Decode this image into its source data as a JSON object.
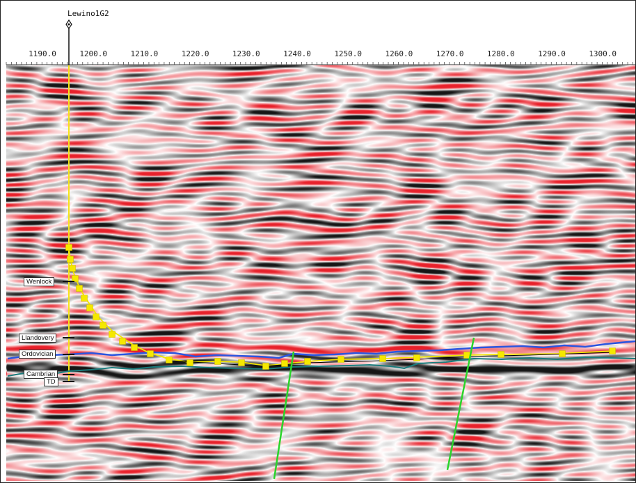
{
  "well": {
    "name": "Lewino1G2",
    "markers": [
      {
        "label": "Wenlock"
      },
      {
        "label": "Llandovery"
      },
      {
        "label": "Ordovician"
      },
      {
        "label": "Cambrian"
      },
      {
        "label": "TD"
      }
    ]
  },
  "axis": {
    "tick_labels": [
      "1190.0",
      "1200.0",
      "1210.0",
      "1220.0",
      "1230.0",
      "1240.0",
      "1250.0",
      "1260.0",
      "1270.0",
      "1280.0",
      "1290.0",
      "1300.0"
    ]
  },
  "colors": {
    "seismic_positive": "#e8212b",
    "seismic_negative": "#1a1a1a",
    "background": "#ffffff",
    "well_path": "#f5e31a",
    "horizon_blue": "#2a55e0",
    "horizon_teal": "#1a7d7d",
    "horizon_yellow": "#f2e600",
    "fault": "#2ad52a"
  },
  "icons": {
    "well_head": "diamond-well-symbol"
  }
}
